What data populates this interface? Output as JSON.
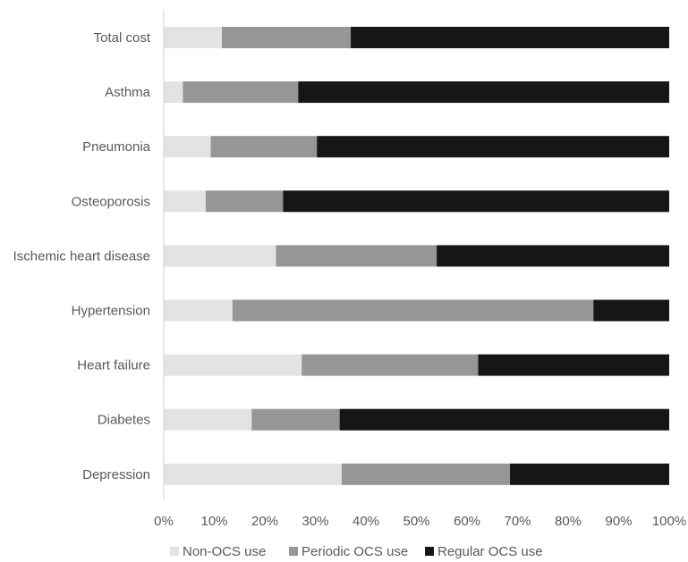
{
  "chart_data": {
    "type": "bar",
    "orientation": "horizontal",
    "stacked": true,
    "percent_stacked": true,
    "categories": [
      "Total cost",
      "Asthma",
      "Pneumonia",
      "Osteoporosis",
      "Ischemic heart disease",
      "Hypertension",
      "Heart failure",
      "Diabetes",
      "Depression"
    ],
    "series": [
      {
        "name": "Non-OCS use",
        "color": "#e3e3e3",
        "values": [
          11.5,
          3.8,
          9.3,
          8.3,
          22.2,
          13.6,
          27.3,
          17.4,
          35.2
        ]
      },
      {
        "name": "Periodic OCS use",
        "color": "#969696",
        "values": [
          25.5,
          22.8,
          21.0,
          15.3,
          31.8,
          71.4,
          34.9,
          17.4,
          33.3
        ]
      },
      {
        "name": "Regular OCS use",
        "color": "#161616",
        "values": [
          63.0,
          73.4,
          69.7,
          76.4,
          46.0,
          15.0,
          37.8,
          65.2,
          31.5
        ]
      }
    ],
    "xticks": [
      "0%",
      "10%",
      "20%",
      "30%",
      "40%",
      "50%",
      "60%",
      "70%",
      "80%",
      "90%",
      "100%"
    ],
    "xlim": [
      0,
      100
    ],
    "title": "",
    "xlabel": "",
    "ylabel": "",
    "grid": false,
    "legend_position": "bottom"
  }
}
